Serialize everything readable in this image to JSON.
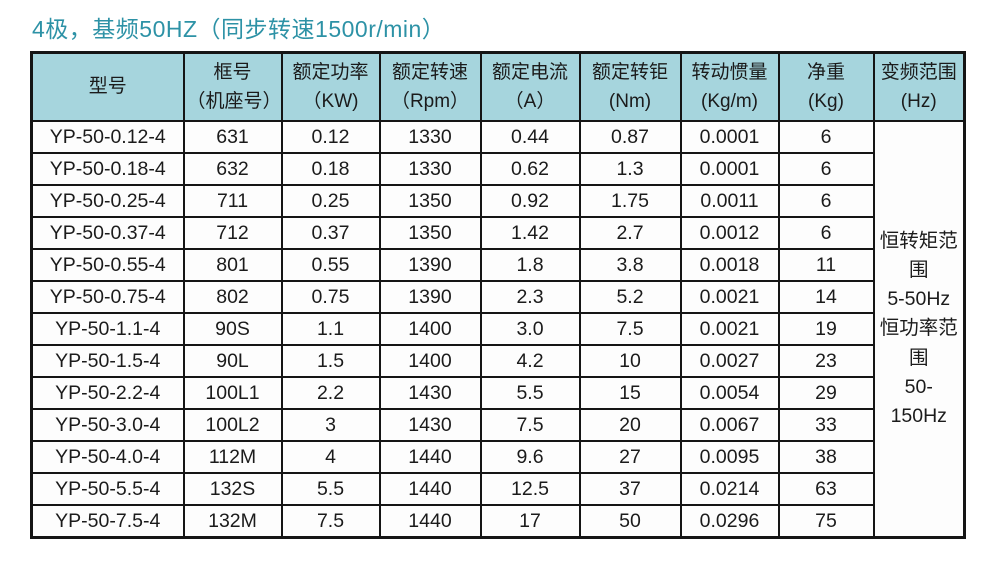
{
  "title": "4极，基频50HZ（同步转速1500r/min）",
  "colors": {
    "title_text": "#2d92a6",
    "header_background": "#a6d5dd",
    "table_border": "#151515",
    "body_background": "#fdfdfd"
  },
  "table": {
    "headers": [
      {
        "line1": "型号",
        "line2": ""
      },
      {
        "line1": "框号",
        "line2": "（机座号）"
      },
      {
        "line1": "额定功率",
        "line2": "（KW)"
      },
      {
        "line1": "额定转速",
        "line2": "（Rpm）"
      },
      {
        "line1": "额定电流",
        "line2": "（A）"
      },
      {
        "line1": "额定转钜",
        "line2": "(Nm)"
      },
      {
        "line1": "转动惯量",
        "line2": "(Kg/m)"
      },
      {
        "line1": "净重",
        "line2": "(Kg)"
      },
      {
        "line1": "变频范围",
        "line2": "(Hz)"
      }
    ],
    "rows": [
      [
        "YP-50-0.12-4",
        "631",
        "0.12",
        "1330",
        "0.44",
        "0.87",
        "0.0001",
        "6"
      ],
      [
        "YP-50-0.18-4",
        "632",
        "0.18",
        "1330",
        "0.62",
        "1.3",
        "0.0001",
        "6"
      ],
      [
        "YP-50-0.25-4",
        "711",
        "0.25",
        "1350",
        "0.92",
        "1.75",
        "0.0011",
        "6"
      ],
      [
        "YP-50-0.37-4",
        "712",
        "0.37",
        "1350",
        "1.42",
        "2.7",
        "0.0012",
        "6"
      ],
      [
        "YP-50-0.55-4",
        "801",
        "0.55",
        "1390",
        "1.8",
        "3.8",
        "0.0018",
        "11"
      ],
      [
        "YP-50-0.75-4",
        "802",
        "0.75",
        "1390",
        "2.3",
        "5.2",
        "0.0021",
        "14"
      ],
      [
        "YP-50-1.1-4",
        "90S",
        "1.1",
        "1400",
        "3.0",
        "7.5",
        "0.0021",
        "19"
      ],
      [
        "YP-50-1.5-4",
        "90L",
        "1.5",
        "1400",
        "4.2",
        "10",
        "0.0027",
        "23"
      ],
      [
        "YP-50-2.2-4",
        "100L1",
        "2.2",
        "1430",
        "5.5",
        "15",
        "0.0054",
        "29"
      ],
      [
        "YP-50-3.0-4",
        "100L2",
        "3",
        "1430",
        "7.5",
        "20",
        "0.0067",
        "33"
      ],
      [
        "YP-50-4.0-4",
        "112M",
        "4",
        "1440",
        "9.6",
        "27",
        "0.0095",
        "38"
      ],
      [
        "YP-50-5.5-4",
        "132S",
        "5.5",
        "1440",
        "12.5",
        "37",
        "0.0214",
        "63"
      ],
      [
        "YP-50-7.5-4",
        "132M",
        "7.5",
        "1440",
        "17",
        "50",
        "0.0296",
        "75"
      ]
    ],
    "merged_cell_lines": [
      "恒转矩范围",
      "5-50Hz",
      "恒功率范围",
      "50-150Hz"
    ]
  }
}
